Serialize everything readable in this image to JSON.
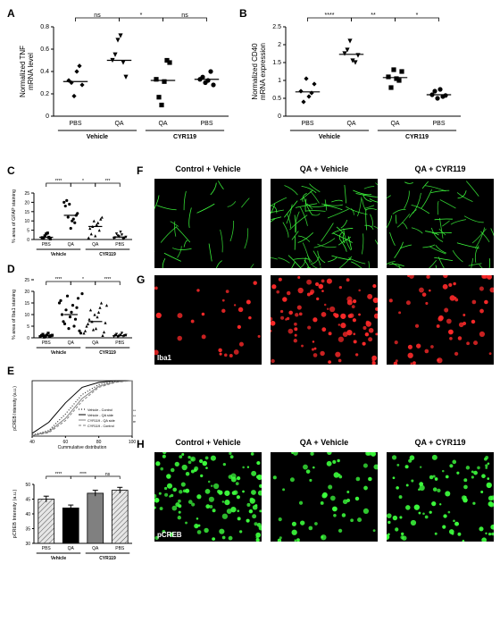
{
  "panelLabels": {
    "A": "A",
    "B": "B",
    "C": "C",
    "D": "D",
    "E": "E",
    "F": "F",
    "G": "G",
    "H": "H"
  },
  "panelA": {
    "type": "scatter",
    "ylabel": "Normalized TNF\nmRNA level",
    "ylim": [
      0,
      0.8
    ],
    "yticks": [
      0,
      0.2,
      0.4,
      0.6,
      0.8
    ],
    "groups": [
      "PBS",
      "QA",
      "QA",
      "PBS"
    ],
    "super_groups": [
      "Vehicle",
      "CYR119"
    ],
    "markers": [
      "diamond",
      "tri-down",
      "square",
      "circle"
    ],
    "values": [
      [
        0.32,
        0.3,
        0.18,
        0.4,
        0.45,
        0.28
      ],
      [
        0.5,
        0.55,
        0.68,
        0.72,
        0.48,
        0.35
      ],
      [
        0.33,
        0.17,
        0.1,
        0.31,
        0.5,
        0.48
      ],
      [
        0.33,
        0.35,
        0.3,
        0.32,
        0.4,
        0.28
      ]
    ],
    "medians": [
      0.31,
      0.5,
      0.32,
      0.33
    ],
    "sig": [
      {
        "from": 0,
        "to": 1,
        "label": "ns"
      },
      {
        "from": 1,
        "to": 2,
        "label": "*"
      },
      {
        "from": 2,
        "to": 3,
        "label": "ns"
      }
    ],
    "color": "#000000",
    "background": "#ffffff",
    "axis_fontsize": 7
  },
  "panelB": {
    "type": "scatter",
    "ylabel": "Normalized CD40\nmRNA expression",
    "ylim": [
      0,
      2.5
    ],
    "yticks": [
      0,
      0.5,
      1.0,
      1.5,
      2.0,
      2.5
    ],
    "groups": [
      "PBS",
      "QA",
      "QA",
      "PBS"
    ],
    "super_groups": [
      "Vehicle",
      "CYR119"
    ],
    "markers": [
      "diamond",
      "tri-down",
      "square",
      "circle"
    ],
    "values": [
      [
        0.7,
        0.4,
        1.05,
        0.55,
        0.65,
        0.9
      ],
      [
        1.75,
        1.85,
        2.1,
        1.55,
        1.5,
        1.7
      ],
      [
        1.1,
        0.8,
        1.3,
        1.05,
        1.0,
        1.25
      ],
      [
        0.6,
        0.7,
        0.5,
        0.75,
        0.55,
        0.58
      ]
    ],
    "medians": [
      0.68,
      1.73,
      1.08,
      0.6
    ],
    "sig": [
      {
        "from": 0,
        "to": 1,
        "label": "****"
      },
      {
        "from": 1,
        "to": 2,
        "label": "**"
      },
      {
        "from": 2,
        "to": 3,
        "label": "*"
      }
    ],
    "color": "#000000",
    "background": "#ffffff",
    "axis_fontsize": 7
  },
  "panelC": {
    "type": "scatter",
    "ylabel": "% area of GFAP staining",
    "ylim": [
      0,
      25
    ],
    "yticks": [
      0,
      5,
      10,
      15,
      20,
      25
    ],
    "groups": [
      "PBS",
      "QA",
      "QA",
      "PBS"
    ],
    "super_groups": [
      "Vehicle",
      "CYR119"
    ],
    "markers": [
      "square",
      "circle",
      "triangle",
      "tri-down"
    ],
    "values": [
      [
        1,
        0.5,
        2,
        3,
        3.5,
        1.2,
        0.3
      ],
      [
        20,
        18,
        21,
        12,
        19,
        6,
        10,
        11,
        9,
        13,
        14
      ],
      [
        1,
        6,
        3,
        7,
        10,
        2,
        8,
        9,
        5,
        11,
        12
      ],
      [
        0.5,
        1,
        3,
        2,
        1.5,
        4,
        2.5,
        0.2,
        0.8,
        1.3
      ]
    ],
    "medians": [
      1.2,
      13,
      7,
      1.3
    ],
    "sig": [
      {
        "from": 0,
        "to": 1,
        "label": "****"
      },
      {
        "from": 1,
        "to": 2,
        "label": "*"
      },
      {
        "from": 2,
        "to": 3,
        "label": "***"
      }
    ],
    "color": "#000000"
  },
  "panelD": {
    "type": "scatter",
    "ylabel": "% area of Iba1 staining",
    "ylim": [
      0,
      20
    ],
    "yticks": [
      0,
      5,
      10,
      15,
      20,
      25
    ],
    "groups": [
      "PBS",
      "QA",
      "QA",
      "PBS"
    ],
    "super_groups": [
      "Vehicle",
      "CYR119"
    ],
    "markers": [
      "square",
      "circle",
      "triangle",
      "tri-down"
    ],
    "values": [
      [
        0.5,
        1,
        1.5,
        0.3,
        0.8,
        1.2,
        2,
        0.6,
        0.9,
        1.1
      ],
      [
        15,
        16,
        10,
        7,
        6,
        12,
        18,
        4,
        9,
        11,
        14,
        5,
        8,
        13,
        17,
        3,
        2,
        19
      ],
      [
        2,
        3,
        5,
        6,
        8,
        12,
        7,
        3.5,
        10,
        4,
        9,
        11,
        13,
        15,
        1,
        2.5,
        6.5,
        14
      ],
      [
        0.5,
        1,
        1.5,
        0.3,
        0.8,
        1.2,
        2,
        0.6,
        0.9,
        1.1
      ]
    ],
    "medians": [
      0.9,
      10,
      7,
      0.9
    ],
    "sig": [
      {
        "from": 0,
        "to": 1,
        "label": "****"
      },
      {
        "from": 1,
        "to": 2,
        "label": "*"
      },
      {
        "from": 2,
        "to": 3,
        "label": "****"
      }
    ],
    "color": "#000000"
  },
  "panelE_cdf": {
    "type": "line",
    "ylabel": "pCREB Intensity (a.u.)",
    "xlabel": "Cummulative distribution",
    "xlim": [
      40,
      100
    ],
    "xticks": [
      40,
      60,
      80,
      100
    ],
    "ylim": [
      0,
      1.0
    ],
    "legend": [
      "Vehicle - Control",
      "Vehicle - QA side",
      "CYR119 - QA side",
      "CYR119 - Control"
    ],
    "line_styles": [
      "dotted",
      "solid",
      "solid",
      "dashed"
    ],
    "line_colors": [
      "#000000",
      "#000000",
      "#808080",
      "#808080"
    ],
    "legend_sig": [
      "****",
      "****",
      "ns"
    ],
    "curves": [
      [
        [
          40,
          0.02
        ],
        [
          50,
          0.1
        ],
        [
          60,
          0.4
        ],
        [
          70,
          0.75
        ],
        [
          80,
          0.93
        ],
        [
          90,
          0.99
        ],
        [
          100,
          1.0
        ]
      ],
      [
        [
          40,
          0.05
        ],
        [
          50,
          0.25
        ],
        [
          60,
          0.6
        ],
        [
          70,
          0.88
        ],
        [
          80,
          0.97
        ],
        [
          90,
          1.0
        ],
        [
          100,
          1.0
        ]
      ],
      [
        [
          40,
          0.01
        ],
        [
          50,
          0.08
        ],
        [
          60,
          0.32
        ],
        [
          70,
          0.68
        ],
        [
          80,
          0.9
        ],
        [
          90,
          0.98
        ],
        [
          100,
          1.0
        ]
      ],
      [
        [
          40,
          0.01
        ],
        [
          50,
          0.06
        ],
        [
          60,
          0.28
        ],
        [
          70,
          0.63
        ],
        [
          80,
          0.88
        ],
        [
          90,
          0.97
        ],
        [
          100,
          1.0
        ]
      ]
    ]
  },
  "panelE_bar": {
    "type": "bar",
    "ylabel": "pCREB Intensity (a.u.)",
    "ylim": [
      30,
      50
    ],
    "yticks": [
      30,
      35,
      40,
      45,
      50
    ],
    "groups": [
      "PBS",
      "QA",
      "QA",
      "PBS"
    ],
    "super_groups": [
      "Vehicle",
      "CYR119"
    ],
    "values": [
      45,
      42,
      47,
      48
    ],
    "errors": [
      1,
      1,
      1,
      1
    ],
    "fills": [
      "hatch-gray",
      "#000000",
      "#808080",
      "hatch-gray"
    ],
    "sig": [
      {
        "from": 0,
        "to": 1,
        "label": "****"
      },
      {
        "from": 1,
        "to": 2,
        "label": "****"
      },
      {
        "from": 2,
        "to": 3,
        "label": "ns"
      }
    ]
  },
  "image_titles": [
    "Control + Vehicle",
    "QA + Vehicle",
    "QA + CYR119"
  ],
  "panelF_label": "",
  "panelG_label": "Iba1",
  "panelH_label": "pCREB",
  "panelF_color": "#3dff3d",
  "panelG_color": "#ff2a2a",
  "panelH_color": "#3dff3d",
  "micro_bg": "#000000"
}
